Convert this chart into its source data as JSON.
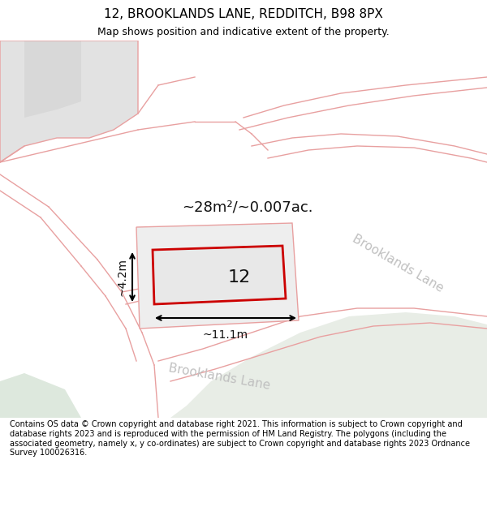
{
  "title": "12, BROOKLANDS LANE, REDDITCH, B98 8PX",
  "subtitle": "Map shows position and indicative extent of the property.",
  "footer": "Contains OS data © Crown copyright and database right 2021. This information is subject to Crown copyright and database rights 2023 and is reproduced with the permission of HM Land Registry. The polygons (including the associated geometry, namely x, y co-ordinates) are subject to Crown copyright and database rights 2023 Ordnance Survey 100026316.",
  "area_label": "~28m²/~0.007ac.",
  "width_label": "~11.1m",
  "height_label": "~4.2m",
  "number_label": "12",
  "bg_color": "#ffffff",
  "road_color": "#e8a0a0",
  "green_fill": "#e8ede6",
  "gray_fill": "#e2e2e2",
  "gray_fill2": "#d8d8d8",
  "plot_fill": "#ebebeb",
  "plot_edge": "#e8a0a0",
  "bld_fill": "#e8e8e8",
  "bld_edge": "#cc0000",
  "dim_color": "#000000",
  "road_label_color": "#c0c0c0",
  "title_fontsize": 11,
  "subtitle_fontsize": 9,
  "footer_fontsize": 7,
  "area_fontsize": 13,
  "number_fontsize": 16,
  "dim_fontsize": 10,
  "road_label_fontsize": 11
}
